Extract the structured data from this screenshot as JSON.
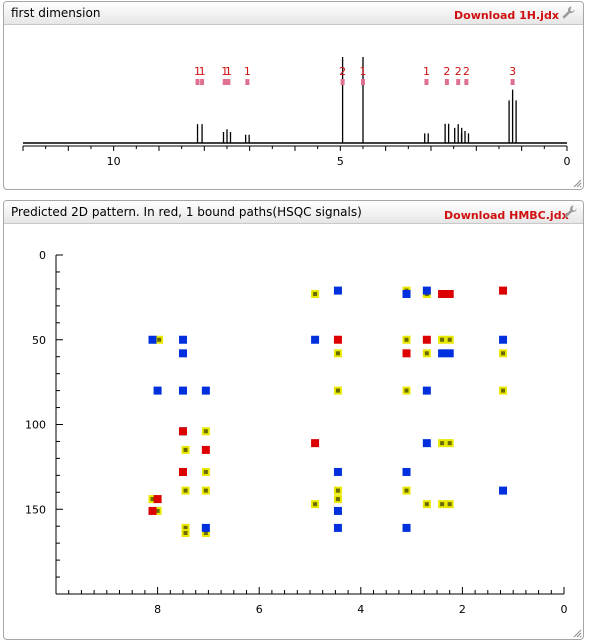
{
  "panel1": {
    "title": "first dimension",
    "download_label": "Download 1H.jdx",
    "wrench_icon": "wrench-icon"
  },
  "panel2": {
    "title": "Predicted 2D pattern. In red, 1 bound paths(HSQC signals)",
    "download_label": "Download HMBC.jdx",
    "wrench_icon": "wrench-icon"
  },
  "chart_data": [
    {
      "type": "line",
      "title": "",
      "xlabel": "",
      "ylabel": "",
      "xlim": [
        12,
        0
      ],
      "x_reversed": true,
      "x_ticks": [
        10,
        5,
        0
      ],
      "peaks": [
        {
          "ppm": 8.15,
          "height": 0.22,
          "mult": 1
        },
        {
          "ppm": 8.05,
          "height": 0.22,
          "mult": 1
        },
        {
          "ppm": 7.5,
          "height": 0.16,
          "mult": 3
        },
        {
          "ppm": 7.05,
          "height": 0.12,
          "mult": 2
        },
        {
          "ppm": 4.95,
          "height": 1.0,
          "mult": 1
        },
        {
          "ppm": 4.5,
          "height": 1.0,
          "mult": 1
        },
        {
          "ppm": 3.1,
          "height": 0.14,
          "mult": 2
        },
        {
          "ppm": 2.65,
          "height": 0.28,
          "mult": 2
        },
        {
          "ppm": 2.4,
          "height": 0.22,
          "mult": 3
        },
        {
          "ppm": 2.25,
          "height": 0.14,
          "mult": 3
        },
        {
          "ppm": 1.2,
          "height": 0.62,
          "mult": 3
        }
      ],
      "integral_labels": [
        {
          "ppm": 8.15,
          "label": "1"
        },
        {
          "ppm": 8.05,
          "label": "1"
        },
        {
          "ppm": 7.55,
          "label": "1"
        },
        {
          "ppm": 7.47,
          "label": "1"
        },
        {
          "ppm": 7.05,
          "label": "1"
        },
        {
          "ppm": 4.95,
          "label": "2"
        },
        {
          "ppm": 4.5,
          "label": "1"
        },
        {
          "ppm": 3.1,
          "label": "1"
        },
        {
          "ppm": 2.65,
          "label": "2"
        },
        {
          "ppm": 2.4,
          "label": "2"
        },
        {
          "ppm": 2.22,
          "label": "2"
        },
        {
          "ppm": 1.2,
          "label": "3"
        }
      ]
    },
    {
      "type": "scatter",
      "title": "",
      "xlabel": "",
      "ylabel": "",
      "xlim": [
        10,
        0
      ],
      "ylim": [
        0,
        200
      ],
      "x_reversed": true,
      "y_reversed": true,
      "x_ticks": [
        8,
        6,
        4,
        2,
        0
      ],
      "y_ticks": [
        0,
        50,
        100,
        150
      ],
      "grid": false,
      "colors": {
        "hsqc": "#dd0000",
        "hmbc_yellow": "#c8c800",
        "blue": "#0030dd",
        "yellow_outline": "#e8e800"
      },
      "series": [
        {
          "kind": "hsqc",
          "points": [
            [
              8.1,
              151
            ],
            [
              8.0,
              144
            ],
            [
              7.5,
              104
            ],
            [
              7.5,
              128
            ],
            [
              7.05,
              115
            ],
            [
              4.9,
              111
            ],
            [
              4.45,
              50
            ],
            [
              3.1,
              58
            ],
            [
              2.7,
              50
            ],
            [
              2.4,
              23
            ],
            [
              2.25,
              23
            ],
            [
              1.2,
              21
            ]
          ]
        },
        {
          "kind": "hmbc_yellow",
          "points": [
            [
              8.1,
              144
            ],
            [
              8.0,
              151
            ],
            [
              7.97,
              50
            ],
            [
              7.45,
              115
            ],
            [
              7.45,
              139
            ],
            [
              7.45,
              161
            ],
            [
              7.45,
              164
            ],
            [
              7.05,
              104
            ],
            [
              7.05,
              128
            ],
            [
              7.05,
              139
            ],
            [
              7.05,
              164
            ],
            [
              4.9,
              23
            ],
            [
              4.9,
              147
            ],
            [
              4.45,
              58
            ],
            [
              4.45,
              80
            ],
            [
              4.45,
              139
            ],
            [
              4.45,
              144
            ],
            [
              3.1,
              21
            ],
            [
              3.1,
              50
            ],
            [
              3.1,
              80
            ],
            [
              3.1,
              139
            ],
            [
              2.7,
              23
            ],
            [
              2.7,
              58
            ],
            [
              2.7,
              147
            ],
            [
              2.4,
              50
            ],
            [
              2.4,
              111
            ],
            [
              2.4,
              147
            ],
            [
              2.25,
              50
            ],
            [
              2.25,
              111
            ],
            [
              2.25,
              147
            ],
            [
              1.2,
              58
            ],
            [
              1.2,
              80
            ]
          ]
        },
        {
          "kind": "blue",
          "points": [
            [
              8.1,
              50
            ],
            [
              8.0,
              80
            ],
            [
              7.5,
              50
            ],
            [
              7.5,
              58
            ],
            [
              7.5,
              80
            ],
            [
              7.5,
              104
            ],
            [
              7.5,
              128
            ],
            [
              7.05,
              80
            ],
            [
              7.05,
              161
            ],
            [
              4.9,
              50
            ],
            [
              4.45,
              21
            ],
            [
              4.45,
              128
            ],
            [
              4.45,
              151
            ],
            [
              4.45,
              161
            ],
            [
              3.1,
              23
            ],
            [
              3.1,
              128
            ],
            [
              3.1,
              161
            ],
            [
              2.7,
              21
            ],
            [
              2.7,
              80
            ],
            [
              2.7,
              111
            ],
            [
              2.4,
              58
            ],
            [
              2.25,
              58
            ],
            [
              1.2,
              50
            ],
            [
              1.2,
              139
            ]
          ]
        }
      ]
    }
  ]
}
